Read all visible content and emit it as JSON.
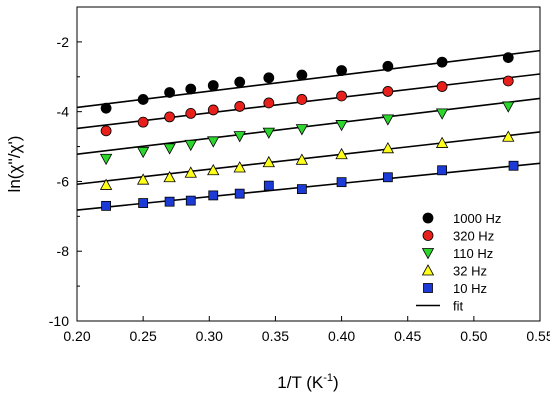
{
  "chart_data": {
    "type": "scatter",
    "title": "",
    "xlabel": "1/T (K",
    "xlabel_sup": "-1",
    "xlabel_end": ")",
    "ylabel": "ln(χ''/χ')",
    "xlim": [
      0.2,
      0.55
    ],
    "ylim": [
      -10,
      -1
    ],
    "xticks": [
      "0.20",
      "0.25",
      "0.30",
      "0.35",
      "0.40",
      "0.45",
      "0.50",
      "0.55"
    ],
    "yticks": [
      "-2",
      "-4",
      "-6",
      "-8",
      "-10"
    ],
    "grid": false,
    "legend_position": "bottom-right",
    "series": [
      {
        "name": "1000 Hz",
        "marker": "circle",
        "color": "#000000",
        "x": [
          0.222,
          0.25,
          0.27,
          0.286,
          0.303,
          0.323,
          0.345,
          0.37,
          0.4,
          0.435,
          0.476,
          0.526
        ],
        "y": [
          -3.9,
          -3.65,
          -3.45,
          -3.35,
          -3.25,
          -3.15,
          -3.03,
          -2.95,
          -2.82,
          -2.7,
          -2.58,
          -2.45
        ],
        "fit": [
          -3.88,
          -2.25
        ]
      },
      {
        "name": "320 Hz",
        "marker": "circle",
        "color": "#e8201c",
        "x": [
          0.222,
          0.25,
          0.27,
          0.286,
          0.303,
          0.323,
          0.345,
          0.37,
          0.4,
          0.435,
          0.476,
          0.526
        ],
        "y": [
          -4.55,
          -4.3,
          -4.15,
          -4.05,
          -3.95,
          -3.85,
          -3.75,
          -3.65,
          -3.55,
          -3.42,
          -3.28,
          -3.12
        ],
        "fit": [
          -4.48,
          -2.92
        ]
      },
      {
        "name": "110 Hz",
        "marker": "triangle-down",
        "color": "#2dd62d",
        "x": [
          0.222,
          0.25,
          0.27,
          0.286,
          0.303,
          0.323,
          0.345,
          0.37,
          0.4,
          0.435,
          0.476,
          0.526
        ],
        "y": [
          -5.35,
          -5.15,
          -5.05,
          -4.95,
          -4.85,
          -4.7,
          -4.6,
          -4.5,
          -4.38,
          -4.22,
          -4.05,
          -3.85
        ],
        "fit": [
          -5.22,
          -3.62
        ]
      },
      {
        "name": "32 Hz",
        "marker": "triangle-up",
        "color": "#ffff1a",
        "x": [
          0.222,
          0.25,
          0.27,
          0.286,
          0.303,
          0.323,
          0.345,
          0.37,
          0.4,
          0.435,
          0.476,
          0.526
        ],
        "y": [
          -6.1,
          -5.95,
          -5.88,
          -5.75,
          -5.68,
          -5.6,
          -5.45,
          -5.38,
          -5.22,
          -5.05,
          -4.9,
          -4.72
        ],
        "fit": [
          -6.08,
          -4.58
        ]
      },
      {
        "name": "10 Hz",
        "marker": "square",
        "color": "#1c3bd6",
        "x": [
          0.222,
          0.25,
          0.27,
          0.286,
          0.303,
          0.323,
          0.345,
          0.37,
          0.4,
          0.435,
          0.476,
          0.53
        ],
        "y": [
          -6.7,
          -6.62,
          -6.58,
          -6.55,
          -6.4,
          -6.35,
          -6.12,
          -6.22,
          -6.02,
          -5.88,
          -5.68,
          -5.55
        ],
        "fit": [
          -6.82,
          -5.48
        ]
      }
    ],
    "fit_label": "fit"
  }
}
